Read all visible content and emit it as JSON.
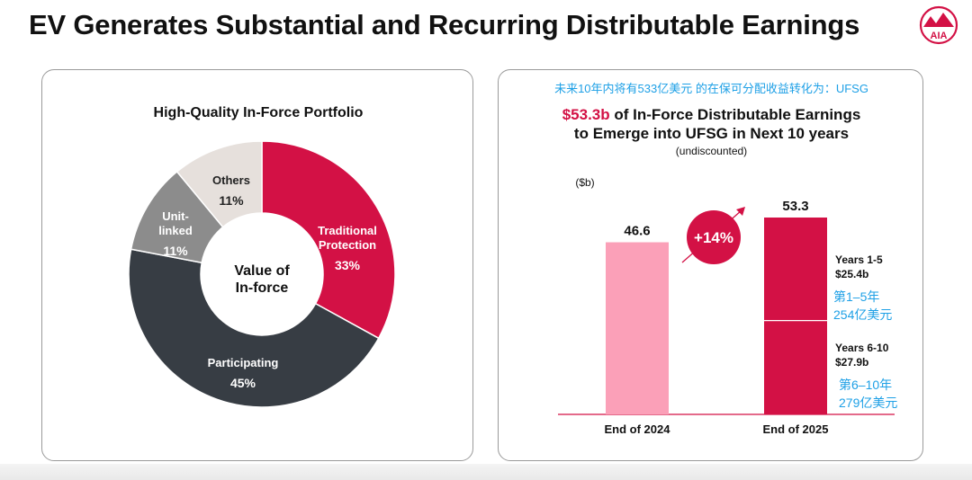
{
  "header": {
    "title": "EV Generates Substantial and Recurring Distributable Earnings",
    "logo_text": "AIA"
  },
  "colors": {
    "brand_red": "#D31145",
    "pink": "#FBA0B8",
    "dark": "#373D44",
    "gray": "#8C8C8C",
    "light": "#E6E0DC",
    "annotation_blue": "#1EA0E6"
  },
  "chart_data": [
    {
      "type": "pie",
      "title": "High-Quality In-Force Portfolio",
      "center_label": [
        "Value of",
        "In-force"
      ],
      "slices": [
        {
          "label": [
            "Traditional",
            "Protection"
          ],
          "value": 33,
          "display": "33%",
          "color": "#D31145"
        },
        {
          "label": [
            "Participating"
          ],
          "value": 45,
          "display": "45%",
          "color": "#373D44"
        },
        {
          "label": [
            "Unit-",
            "linked"
          ],
          "value": 11,
          "display": "11%",
          "color": "#8C8C8C"
        },
        {
          "label": [
            "Others"
          ],
          "value": 11,
          "display": "11%",
          "color": "#E6E0DC"
        }
      ]
    },
    {
      "type": "bar",
      "annotation_top": "未来10年内将有533亿美元 的在保可分配收益转化为：UFSG",
      "title_highlight": "$53.3b",
      "title_rest": " of In-Force Distributable Earnings",
      "title_line2": "to Emerge into UFSG in Next 10 years",
      "subtitle": "(undiscounted)",
      "unit": "($b)",
      "categories": [
        "End of 2024",
        "End of 2025"
      ],
      "values": [
        46.6,
        53.3
      ],
      "value_labels": [
        "46.6",
        "53.3"
      ],
      "ylim": [
        0,
        53.3
      ],
      "growth_label": "+14%",
      "stack_2025": [
        {
          "name_line1": "Years 1-5",
          "name_line2": "$25.4b",
          "value": 25.4,
          "cn_line1": "第1–5年",
          "cn_line2": "254亿美元"
        },
        {
          "name_line1": "Years 6-10",
          "name_line2": "$27.9b",
          "value": 27.9,
          "cn_line1": "第6–10年",
          "cn_line2": "279亿美元"
        }
      ]
    }
  ]
}
